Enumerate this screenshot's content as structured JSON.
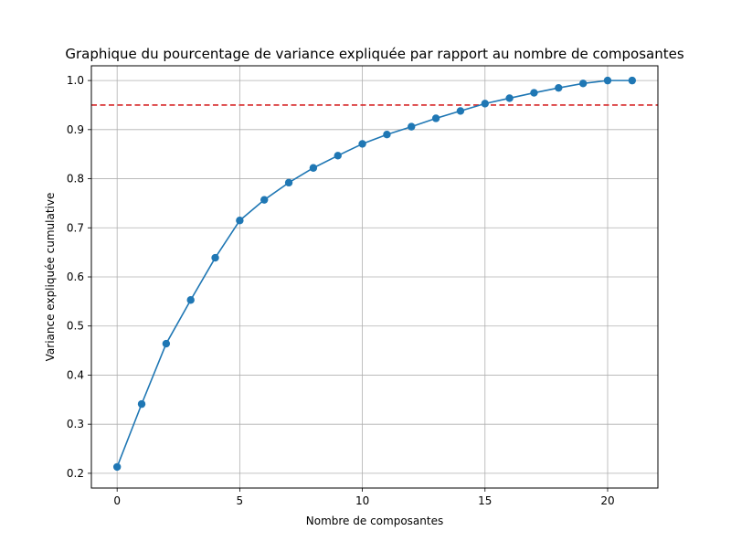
{
  "chart_data": {
    "type": "line",
    "title": "Graphique du pourcentage de variance expliquée par rapport au nombre de composantes",
    "xlabel": "Nombre de composantes",
    "ylabel": "Variance expliquée cumulative",
    "xlim": [
      -1.05,
      22.05
    ],
    "ylim": [
      0.17,
      1.03
    ],
    "xticks": [
      0,
      5,
      10,
      15,
      20
    ],
    "yticks": [
      0.2,
      0.3,
      0.4,
      0.5,
      0.6,
      0.7,
      0.8,
      0.9,
      1.0
    ],
    "ytick_labels": [
      "0.2",
      "0.3",
      "0.4",
      "0.5",
      "0.6",
      "0.7",
      "0.8",
      "0.9",
      "1.0"
    ],
    "xtick_labels": [
      "0",
      "5",
      "10",
      "15",
      "20"
    ],
    "grid": true,
    "series": [
      {
        "x": [
          0,
          1,
          2,
          3,
          4,
          5,
          6,
          7,
          8,
          9,
          10,
          11,
          12,
          13,
          14,
          15,
          16,
          17,
          18,
          19,
          20,
          21
        ],
        "y": [
          0.213,
          0.341,
          0.464,
          0.553,
          0.639,
          0.715,
          0.757,
          0.792,
          0.822,
          0.847,
          0.871,
          0.89,
          0.906,
          0.923,
          0.938,
          0.953,
          0.964,
          0.975,
          0.985,
          0.994,
          1.0,
          1.0
        ],
        "color": "#1f77b4",
        "marker": "circle"
      }
    ],
    "hlines": [
      {
        "y": 0.95,
        "color": "#d62728",
        "style": "dashed"
      }
    ]
  }
}
